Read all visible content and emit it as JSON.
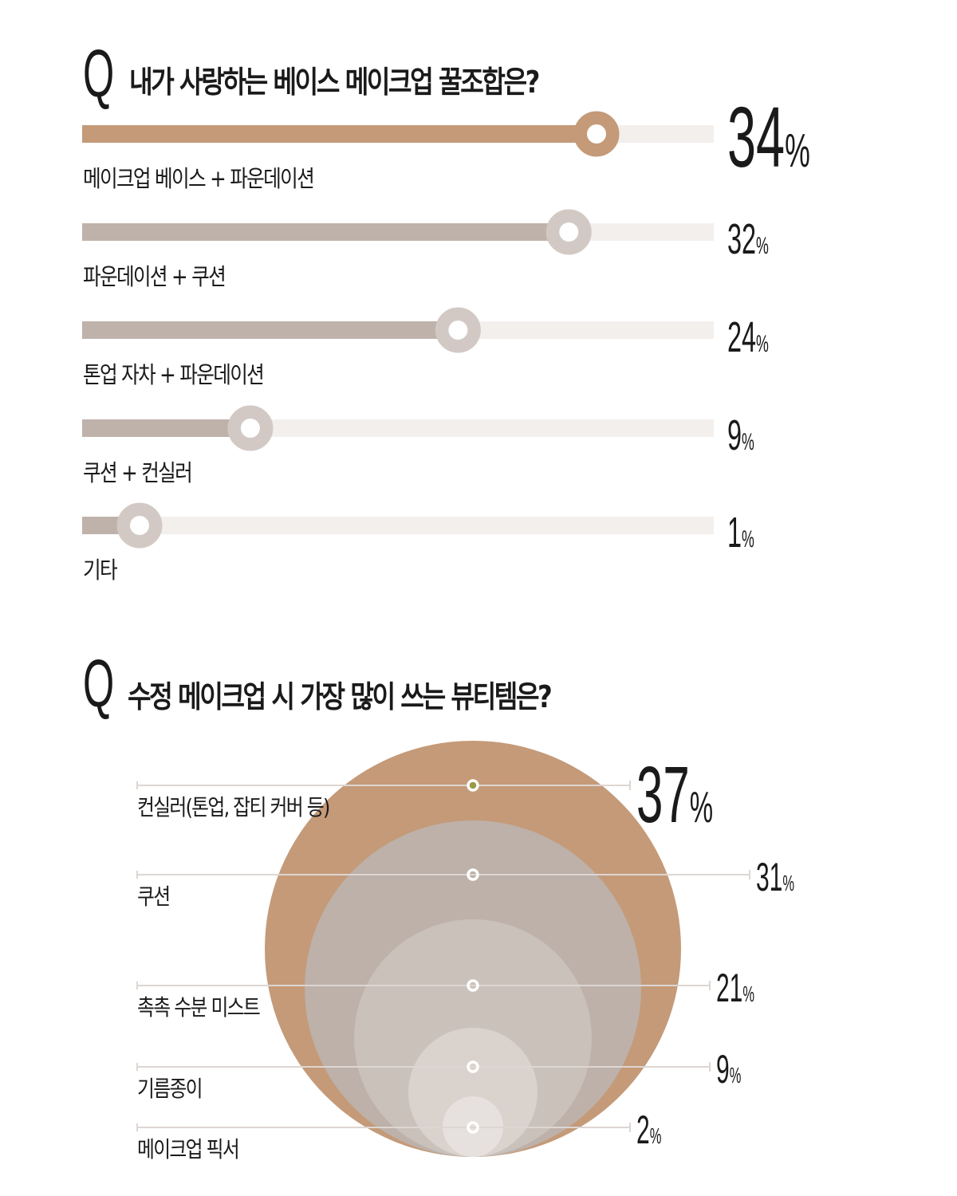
{
  "chart_data": [
    {
      "type": "bar",
      "q_mark": "Q",
      "title": "내가 사랑하는 베이스 메이크업 꿀조합은?",
      "unit": "%",
      "categories": [
        "메이크업 베이스 + 파운데이션",
        "파운데이션 + 쿠션",
        "톤업 자차 + 파운데이션",
        "쿠션 + 컨실러",
        "기타"
      ],
      "values": [
        34,
        32,
        24,
        9,
        1
      ],
      "value_labels": [
        "34",
        "32",
        "24",
        "9",
        "1"
      ],
      "colors": {
        "highlight": "#c49a78",
        "normal": "#bfb2aa",
        "track": "#f3efed"
      }
    },
    {
      "type": "bubble",
      "q_mark": "Q",
      "title": "수정 메이크업 시 가장 많이 쓰는 뷰티템은?",
      "unit": "%",
      "categories": [
        "컨실러(톤업, 잡티 커버 등)",
        "쿠션",
        "촉촉 수분 미스트",
        "기름종이",
        "메이크업 픽서"
      ],
      "values": [
        37,
        31,
        21,
        9,
        2
      ],
      "value_labels": [
        "37",
        "31",
        "21",
        "9",
        "2"
      ],
      "colors": [
        "#c49a78",
        "#bdb1a9",
        "#cbc1bb",
        "#dad2cd",
        "#e6e1de"
      ],
      "marker_highlight": "#9a9a48"
    }
  ]
}
